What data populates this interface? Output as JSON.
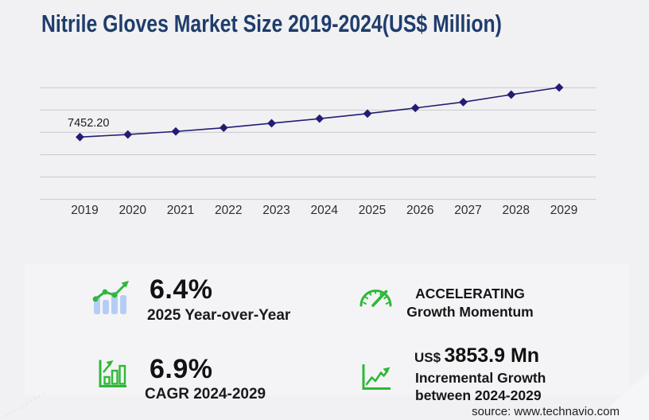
{
  "title": "Nitrile Gloves Market Size 2019-2024(US$ Million)",
  "source": "source: www.technavio.com",
  "chart_data": {
    "type": "line",
    "title": "Nitrile Gloves Market Size 2019-2024(US$ Million)",
    "x": [
      "2019",
      "2020",
      "2021",
      "2022",
      "2023",
      "2024",
      "2025",
      "2026",
      "2027",
      "2028",
      "2029"
    ],
    "series": [
      {
        "name": "Market size (US$ Million)",
        "values": [
          7452.2,
          7770,
          8145,
          8600,
          9160,
          9732,
          10355,
          11050,
          11780,
          12705,
          13586
        ]
      }
    ],
    "point_label": {
      "x": "2019",
      "text": "7452.20"
    },
    "xlabel": "",
    "ylabel": "",
    "grid": "horizontal",
    "gridline_count": 6,
    "legend": "none",
    "marker": "diamond",
    "line_color": "#221d72",
    "note": "only the 2019 value is labeled on the chart; other values estimated from gridlines"
  },
  "stats": {
    "yoy": {
      "value": "6.4%",
      "label": "2025 Year-over-Year"
    },
    "momentum": {
      "line1": "ACCELERATING",
      "line2": "Growth Momentum"
    },
    "cagr": {
      "value": "6.9%",
      "label": "CAGR 2024-2029"
    },
    "incremental": {
      "currency": "US$",
      "value": "3853.9 Mn",
      "line1": "Incremental Growth",
      "line2": "between 2024-2029"
    }
  },
  "colors": {
    "accent_green": "#2eb838",
    "line_navy": "#221d72",
    "title_blue": "#1f3d6b",
    "bar_light_blue": "#b5cdf5",
    "gridline": "#c9c9cd",
    "page_bg": "#f1f1f4",
    "panel_bg": "#f4f4f6"
  }
}
